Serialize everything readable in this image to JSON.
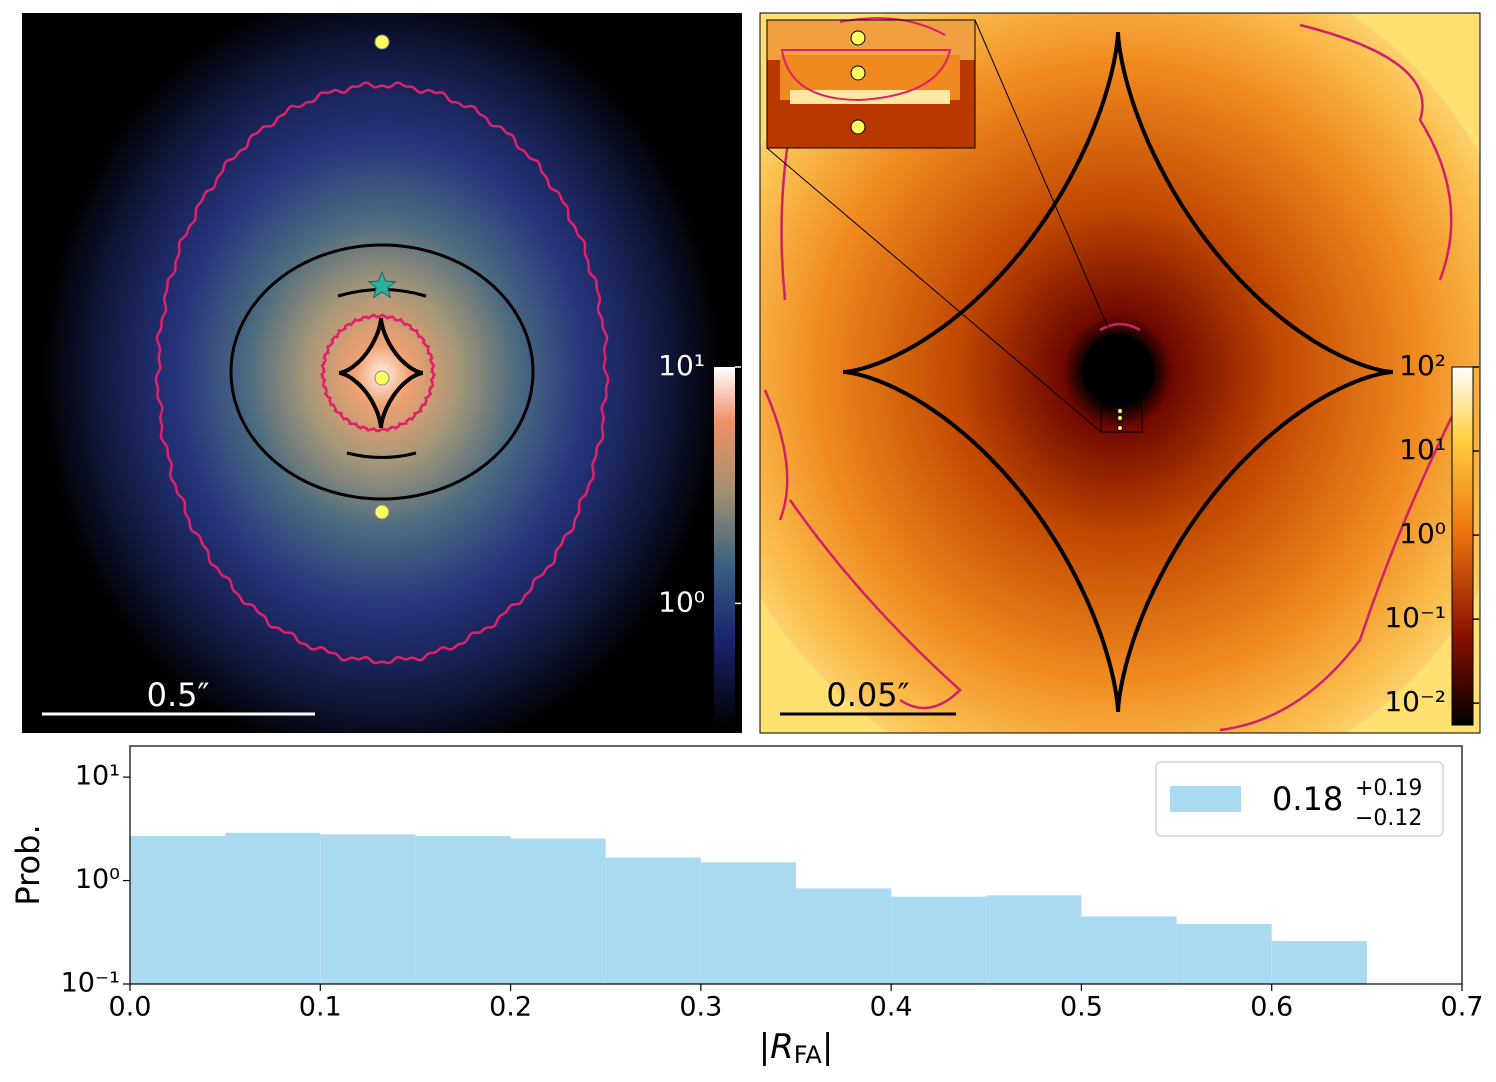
{
  "chart_data": [
    {
      "type": "image",
      "scale_label": "0.5″",
      "colorbar": {
        "log": true,
        "lim": [
          0.3,
          10
        ],
        "ticks": [
          {
            "value": 1,
            "label": "10⁰"
          },
          {
            "value": 10,
            "label": "10¹"
          }
        ]
      }
    },
    {
      "type": "image",
      "scale_label": "0.05″",
      "colorbar": {
        "log": true,
        "lim": [
          0.0055,
          100
        ],
        "ticks": [
          {
            "value": 0.01,
            "label": "10⁻²"
          },
          {
            "value": 0.1,
            "label": "10⁻¹"
          },
          {
            "value": 1,
            "label": "10⁰"
          },
          {
            "value": 10,
            "label": "10¹"
          },
          {
            "value": 100,
            "label": "10²"
          }
        ]
      }
    },
    {
      "type": "histogram",
      "ylabel": "Prob.",
      "xlabel": {
        "before": "|R",
        "sub": "FA",
        "after": "|"
      },
      "bins": [
        0,
        0.05,
        0.1,
        0.15,
        0.2,
        0.25,
        0.3,
        0.35,
        0.4,
        0.45,
        0.5,
        0.55,
        0.6,
        0.65
      ],
      "values": [
        2.7,
        2.9,
        2.8,
        2.7,
        2.55,
        1.67,
        1.5,
        0.84,
        0.7,
        0.72,
        0.45,
        0.38,
        0.26
      ],
      "color": "#aad9f2",
      "log_y": true,
      "xlim": [
        0,
        0.7
      ],
      "ylim": [
        0.1,
        20
      ],
      "xticks": [
        {
          "value": 0,
          "label": "0.0"
        },
        0.1,
        0.2,
        0.3,
        0.4,
        0.5,
        0.6,
        0.7
      ],
      "yticks": [
        {
          "value": 0.1,
          "label": "10⁻¹"
        },
        {
          "value": 1,
          "label": "10⁰"
        },
        {
          "value": 10,
          "label": "10¹"
        }
      ],
      "legend": {
        "loc": "upper right",
        "name": "0.18",
        "plus": "+0.19",
        "minus": "−0.12"
      }
    }
  ]
}
